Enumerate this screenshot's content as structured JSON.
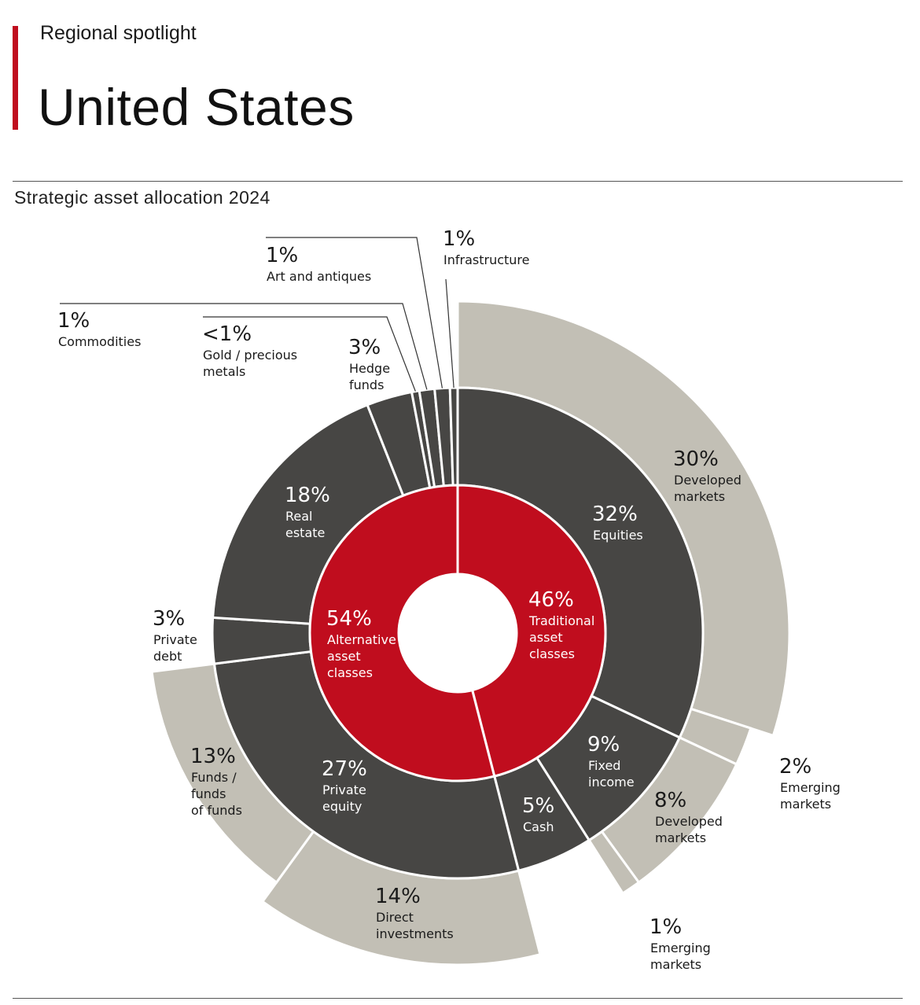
{
  "header": {
    "kicker": "Regional spotlight",
    "title": "United States"
  },
  "chart_data": {
    "type": "sunburst",
    "title": "Strategic asset allocation 2024",
    "colors": {
      "inner": "#c00d1e",
      "middle": "#474644",
      "outer": "#c2bfb5",
      "separator": "#ffffff"
    },
    "rings": {
      "inner": [
        {
          "pct": "46%",
          "label": [
            "Traditional",
            "asset",
            "classes"
          ],
          "value": 46
        },
        {
          "pct": "54%",
          "label": [
            "Alternative",
            "asset",
            "classes"
          ],
          "value": 54
        }
      ],
      "middle": [
        {
          "pct": "32%",
          "label": [
            "Equities"
          ],
          "value": 32
        },
        {
          "pct": "9%",
          "label": [
            "Fixed",
            "income"
          ],
          "value": 9
        },
        {
          "pct": "5%",
          "label": [
            "Cash"
          ],
          "value": 5
        },
        {
          "pct": "27%",
          "label": [
            "Private",
            "equity"
          ],
          "value": 27
        },
        {
          "pct": "3%",
          "label": [
            "Private",
            "debt"
          ],
          "value": 3
        },
        {
          "pct": "18%",
          "label": [
            "Real",
            "estate"
          ],
          "value": 18
        },
        {
          "pct": "3%",
          "label": [
            "Hedge",
            "funds"
          ],
          "value": 3
        },
        {
          "pct": "<1%",
          "label": [
            "Gold / precious",
            "metals"
          ],
          "value": 0.5
        },
        {
          "pct": "1%",
          "label": [
            "Commodities"
          ],
          "value": 1
        },
        {
          "pct": "1%",
          "label": [
            "Art and antiques"
          ],
          "value": 1
        },
        {
          "pct": "1%",
          "label": [
            "Infrastructure"
          ],
          "value": 1
        }
      ],
      "outer": [
        {
          "pct": "30%",
          "label": [
            "Developed",
            "markets"
          ],
          "value": 30,
          "parent": "Equities"
        },
        {
          "pct": "2%",
          "label": [
            "Emerging",
            "markets"
          ],
          "value": 2,
          "parent": "Equities"
        },
        {
          "pct": "8%",
          "label": [
            "Developed",
            "markets"
          ],
          "value": 8,
          "parent": "Fixed income"
        },
        {
          "pct": "1%",
          "label": [
            "Emerging",
            "markets"
          ],
          "value": 1,
          "parent": "Fixed income"
        },
        {
          "pct": "14%",
          "label": [
            "Direct",
            "investments"
          ],
          "value": 14,
          "parent": "Private equity"
        },
        {
          "pct": "13%",
          "label": [
            "Funds /",
            "funds",
            "of funds"
          ],
          "value": 13,
          "parent": "Private equity"
        }
      ]
    }
  }
}
